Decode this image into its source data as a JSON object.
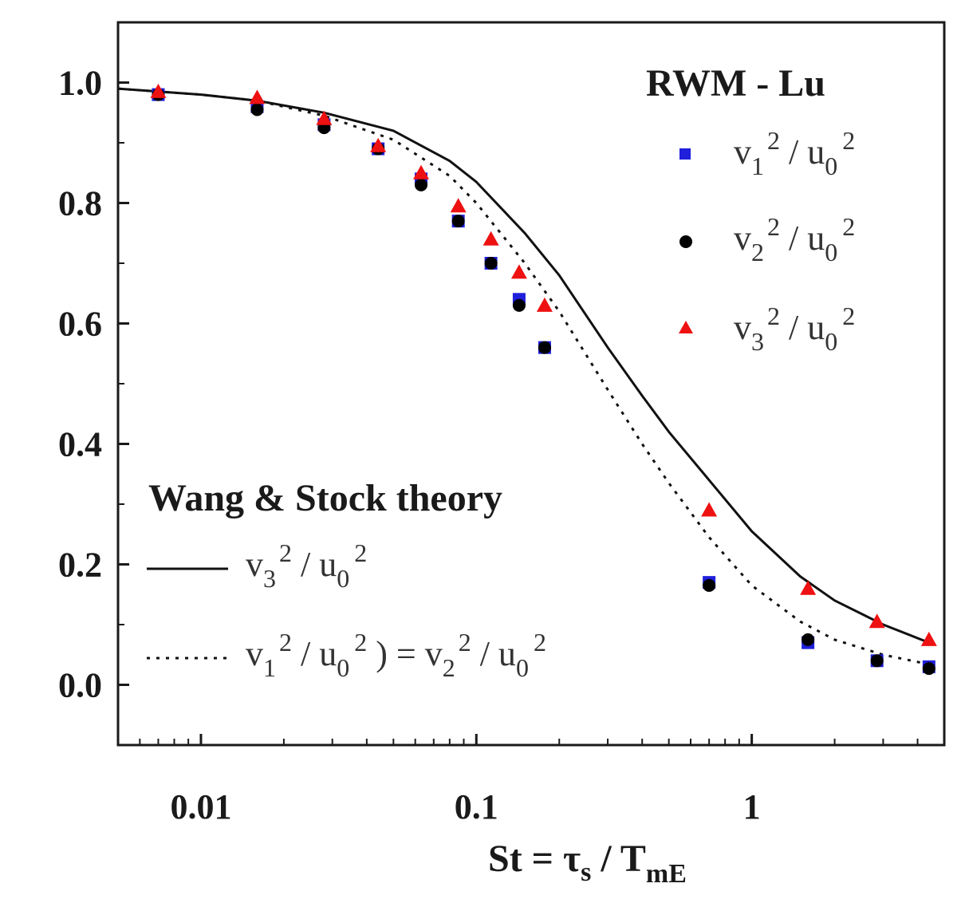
{
  "chart_data": {
    "type": "scatter",
    "xscale": "log",
    "xlim": [
      0.005,
      5
    ],
    "ylim": [
      -0.1,
      1.1
    ],
    "xlabel": {
      "prefix": "St = τ",
      "sub1": "s",
      "mid": " / T",
      "sub2": "mE"
    },
    "ylabel": "",
    "x_ticks": [
      {
        "value": 0.01,
        "label": "0.01"
      },
      {
        "value": 0.1,
        "label": "0.1"
      },
      {
        "value": 1,
        "label": "1"
      }
    ],
    "y_ticks": [
      {
        "value": 0.0,
        "label": "0.0"
      },
      {
        "value": 0.2,
        "label": "0.2"
      },
      {
        "value": 0.4,
        "label": "0.4"
      },
      {
        "value": 0.6,
        "label": "0.6"
      },
      {
        "value": 0.8,
        "label": "0.8"
      },
      {
        "value": 1.0,
        "label": "1.0"
      }
    ],
    "series": [
      {
        "name": "v1^2 / u0^2",
        "marker": "square",
        "color": "#1f1fdc",
        "x": [
          0.007,
          0.016,
          0.028,
          0.044,
          0.063,
          0.086,
          0.113,
          0.143,
          0.177,
          0.7,
          1.6,
          2.85,
          4.4
        ],
        "y": [
          0.98,
          0.96,
          0.93,
          0.89,
          0.84,
          0.77,
          0.7,
          0.64,
          0.56,
          0.17,
          0.07,
          0.04,
          0.03
        ]
      },
      {
        "name": "v2^2 / u0^2",
        "marker": "circle",
        "color": "#000000",
        "x": [
          0.007,
          0.016,
          0.028,
          0.044,
          0.063,
          0.086,
          0.113,
          0.143,
          0.177,
          0.7,
          1.6,
          2.85,
          4.4
        ],
        "y": [
          0.98,
          0.955,
          0.925,
          0.89,
          0.83,
          0.77,
          0.7,
          0.63,
          0.56,
          0.165,
          0.075,
          0.04,
          0.027
        ]
      },
      {
        "name": "v3^2 / u0^2",
        "marker": "triangle",
        "color": "#ee1111",
        "x": [
          0.007,
          0.016,
          0.028,
          0.044,
          0.063,
          0.086,
          0.113,
          0.143,
          0.177,
          0.7,
          1.6,
          2.85,
          4.4
        ],
        "y": [
          0.985,
          0.975,
          0.94,
          0.895,
          0.85,
          0.795,
          0.74,
          0.685,
          0.63,
          0.29,
          0.16,
          0.105,
          0.075
        ]
      }
    ],
    "theory": [
      {
        "name": "v3^2 / u0^2",
        "style": "solid",
        "x": [
          0.005,
          0.007,
          0.01,
          0.016,
          0.028,
          0.05,
          0.08,
          0.1,
          0.15,
          0.2,
          0.3,
          0.4,
          0.5,
          0.7,
          1.0,
          1.5,
          2.0,
          3.0,
          4.4
        ],
        "y": [
          0.99,
          0.985,
          0.98,
          0.97,
          0.95,
          0.92,
          0.87,
          0.835,
          0.75,
          0.68,
          0.56,
          0.48,
          0.42,
          0.34,
          0.255,
          0.18,
          0.14,
          0.1,
          0.07
        ]
      },
      {
        "name": "v1^2 / u0^2 = v2^2 / u0^2",
        "style": "dotted",
        "x": [
          0.005,
          0.007,
          0.01,
          0.016,
          0.028,
          0.05,
          0.08,
          0.1,
          0.15,
          0.2,
          0.3,
          0.4,
          0.5,
          0.7,
          1.0,
          1.5,
          2.0,
          3.0,
          4.4
        ],
        "y": [
          0.99,
          0.985,
          0.98,
          0.97,
          0.945,
          0.905,
          0.845,
          0.8,
          0.7,
          0.62,
          0.49,
          0.4,
          0.335,
          0.245,
          0.165,
          0.105,
          0.075,
          0.05,
          0.034
        ]
      }
    ],
    "legend": {
      "title": "RWM - Lu",
      "entries": [
        {
          "v_sub": "1",
          "sup": "2",
          "sep": " / u",
          "u_sub": "0",
          "sup2": "2"
        },
        {
          "v_sub": "2",
          "sup": "2",
          "sep": " / u",
          "u_sub": "0",
          "sup2": "2"
        },
        {
          "v_sub": "3",
          "sup": "2",
          "sep": " / u",
          "u_sub": "0",
          "sup2": "2"
        }
      ]
    },
    "theory_legend": {
      "title": "Wang & Stock theory",
      "line1": {
        "v_sub": "3",
        "sup": "2",
        "sep": " / u",
        "u_sub": "0",
        "sup2": "2"
      },
      "line2": {
        "v1_sub": "1",
        "sup": "2",
        "sep": " / u",
        "u_sub": "0",
        "sup2": "2",
        "eq": " ) = v",
        "v2_sub": "2",
        "sup3": "2",
        "sep2": " / u",
        "u2_sub": "0",
        "sup4": "2"
      }
    }
  }
}
